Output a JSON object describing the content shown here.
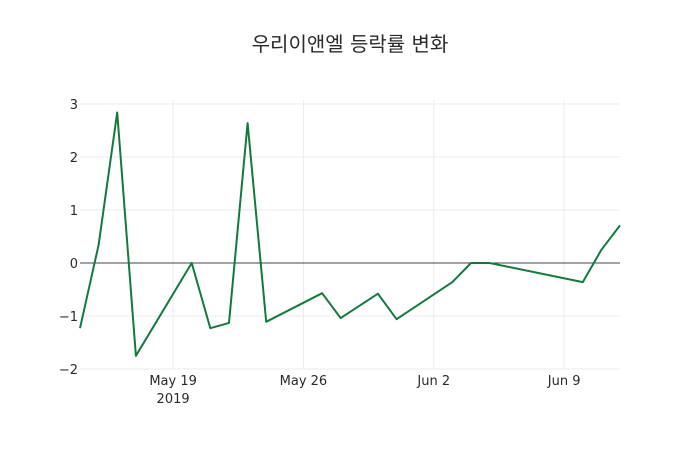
{
  "chart_data": {
    "type": "line",
    "title": "우리이앤엘 등락률 변화",
    "xlabel": "",
    "ylabel": "",
    "ylim": [
      -2,
      3
    ],
    "yticks": [
      3,
      2,
      1,
      0,
      -1,
      -2
    ],
    "ytick_labels": [
      "3",
      "2",
      "1",
      "0",
      "−1",
      "−2"
    ],
    "xticks": [
      {
        "date": "2019-05-19",
        "label": "May 19",
        "sublabel": "2019"
      },
      {
        "date": "2019-05-26",
        "label": "May 26",
        "sublabel": ""
      },
      {
        "date": "2019-06-02",
        "label": "Jun 2",
        "sublabel": ""
      },
      {
        "date": "2019-06-09",
        "label": "Jun 9",
        "sublabel": ""
      }
    ],
    "xrange": [
      "2019-05-14",
      "2019-06-12"
    ],
    "grid": true,
    "zeroline": true,
    "line_color": "#137a3e",
    "x": [
      "2019-05-14",
      "2019-05-15",
      "2019-05-16",
      "2019-05-17",
      "2019-05-20",
      "2019-05-21",
      "2019-05-22",
      "2019-05-23",
      "2019-05-24",
      "2019-05-27",
      "2019-05-28",
      "2019-05-30",
      "2019-05-31",
      "2019-06-03",
      "2019-06-04",
      "2019-06-05",
      "2019-06-10",
      "2019-06-11",
      "2019-06-12"
    ],
    "values": [
      -1.23,
      0.34,
      2.84,
      -1.75,
      0.0,
      -1.23,
      -1.13,
      2.64,
      -1.11,
      -0.57,
      -1.04,
      -0.58,
      -1.06,
      -0.36,
      0.0,
      0.0,
      -0.36,
      0.25,
      0.71
    ]
  }
}
